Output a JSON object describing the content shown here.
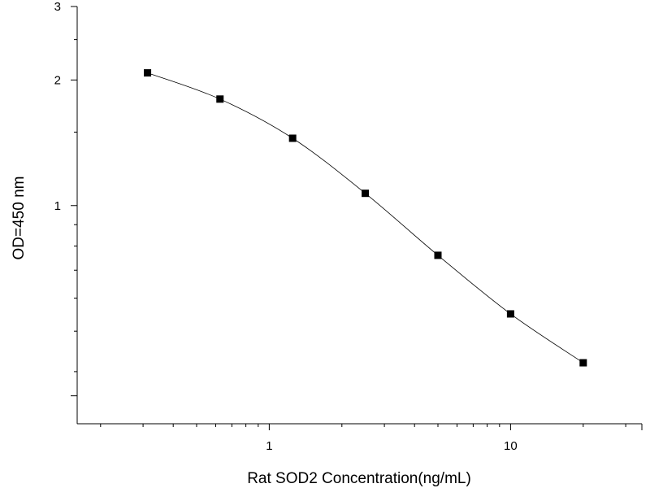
{
  "chart_data": {
    "type": "line",
    "title": "",
    "xlabel": "Rat SOD2  Concentration(ng/mL)",
    "ylabel": "OD=450 nm",
    "x_scale": "log",
    "y_scale": "log",
    "xlim": [
      0.16,
      35
    ],
    "ylim": [
      0.3,
      3
    ],
    "x_tick_labels": [
      "1",
      "10"
    ],
    "x_tick_values": [
      1,
      10
    ],
    "y_tick_labels": [
      "1",
      "2",
      "3"
    ],
    "y_tick_values": [
      1,
      2,
      3
    ],
    "grid": false,
    "marker": "square",
    "series": [
      {
        "x": [
          0.313,
          0.625,
          1.25,
          2.5,
          5,
          10,
          20
        ],
        "y": [
          2.08,
          1.8,
          1.45,
          1.07,
          0.76,
          0.55,
          0.42
        ]
      }
    ]
  }
}
